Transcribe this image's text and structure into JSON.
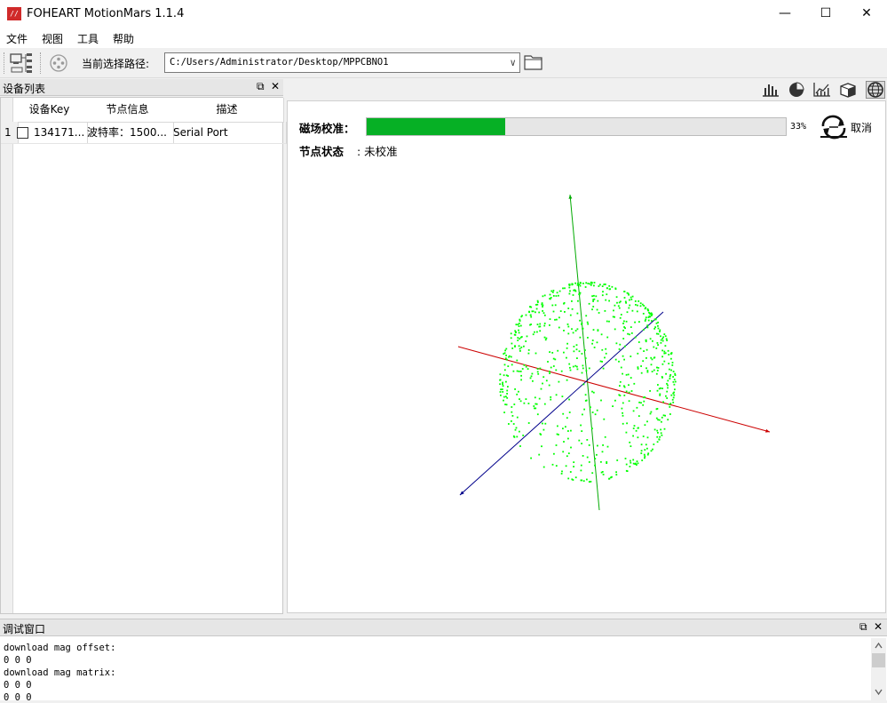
{
  "window": {
    "title": "FOHEART MotionMars  1.1.4",
    "icon_text": "//口",
    "minimize_glyph": "—",
    "maximize_glyph": "☐",
    "close_glyph": "✕"
  },
  "menu": [
    "文件",
    "视图",
    "工具",
    "帮助"
  ],
  "toolbar": {
    "path_label": "当前选择路径:",
    "path_value": "C:/Users/Administrator/Desktop/MPPCBNO1",
    "dropdown_glyph": "∨"
  },
  "device_panel": {
    "title": "设备列表",
    "float_glyph": "⧉",
    "close_glyph": "✕",
    "columns": [
      "设备Key",
      "节点信息",
      "描述"
    ],
    "rows": [
      {
        "index": "1",
        "key": "134171...",
        "node_info": "波特率：1500...",
        "desc": "Serial Port"
      }
    ]
  },
  "view_icons": [
    "bar-chart-icon",
    "pie-chart-icon",
    "line-chart-icon",
    "cube-icon",
    "globe-icon"
  ],
  "calibration": {
    "label": "磁场校准：",
    "progress_percent": 33,
    "progress_text": "33%",
    "cancel_label": "取消",
    "node_status_label": "节点状态",
    "node_status_value": ": 未校准",
    "colors": {
      "progress": "#06b025",
      "points": "#00ff00",
      "x_axis": "#cc0000",
      "y_axis": "#00aa00",
      "z_axis": "#00008b"
    }
  },
  "debug_panel": {
    "title": "调试窗口",
    "float_glyph": "⧉",
    "close_glyph": "✕",
    "lines": [
      "download mag offset:",
      "0 0 0",
      "download mag matrix:",
      "0 0 0",
      "0 0 0"
    ]
  }
}
